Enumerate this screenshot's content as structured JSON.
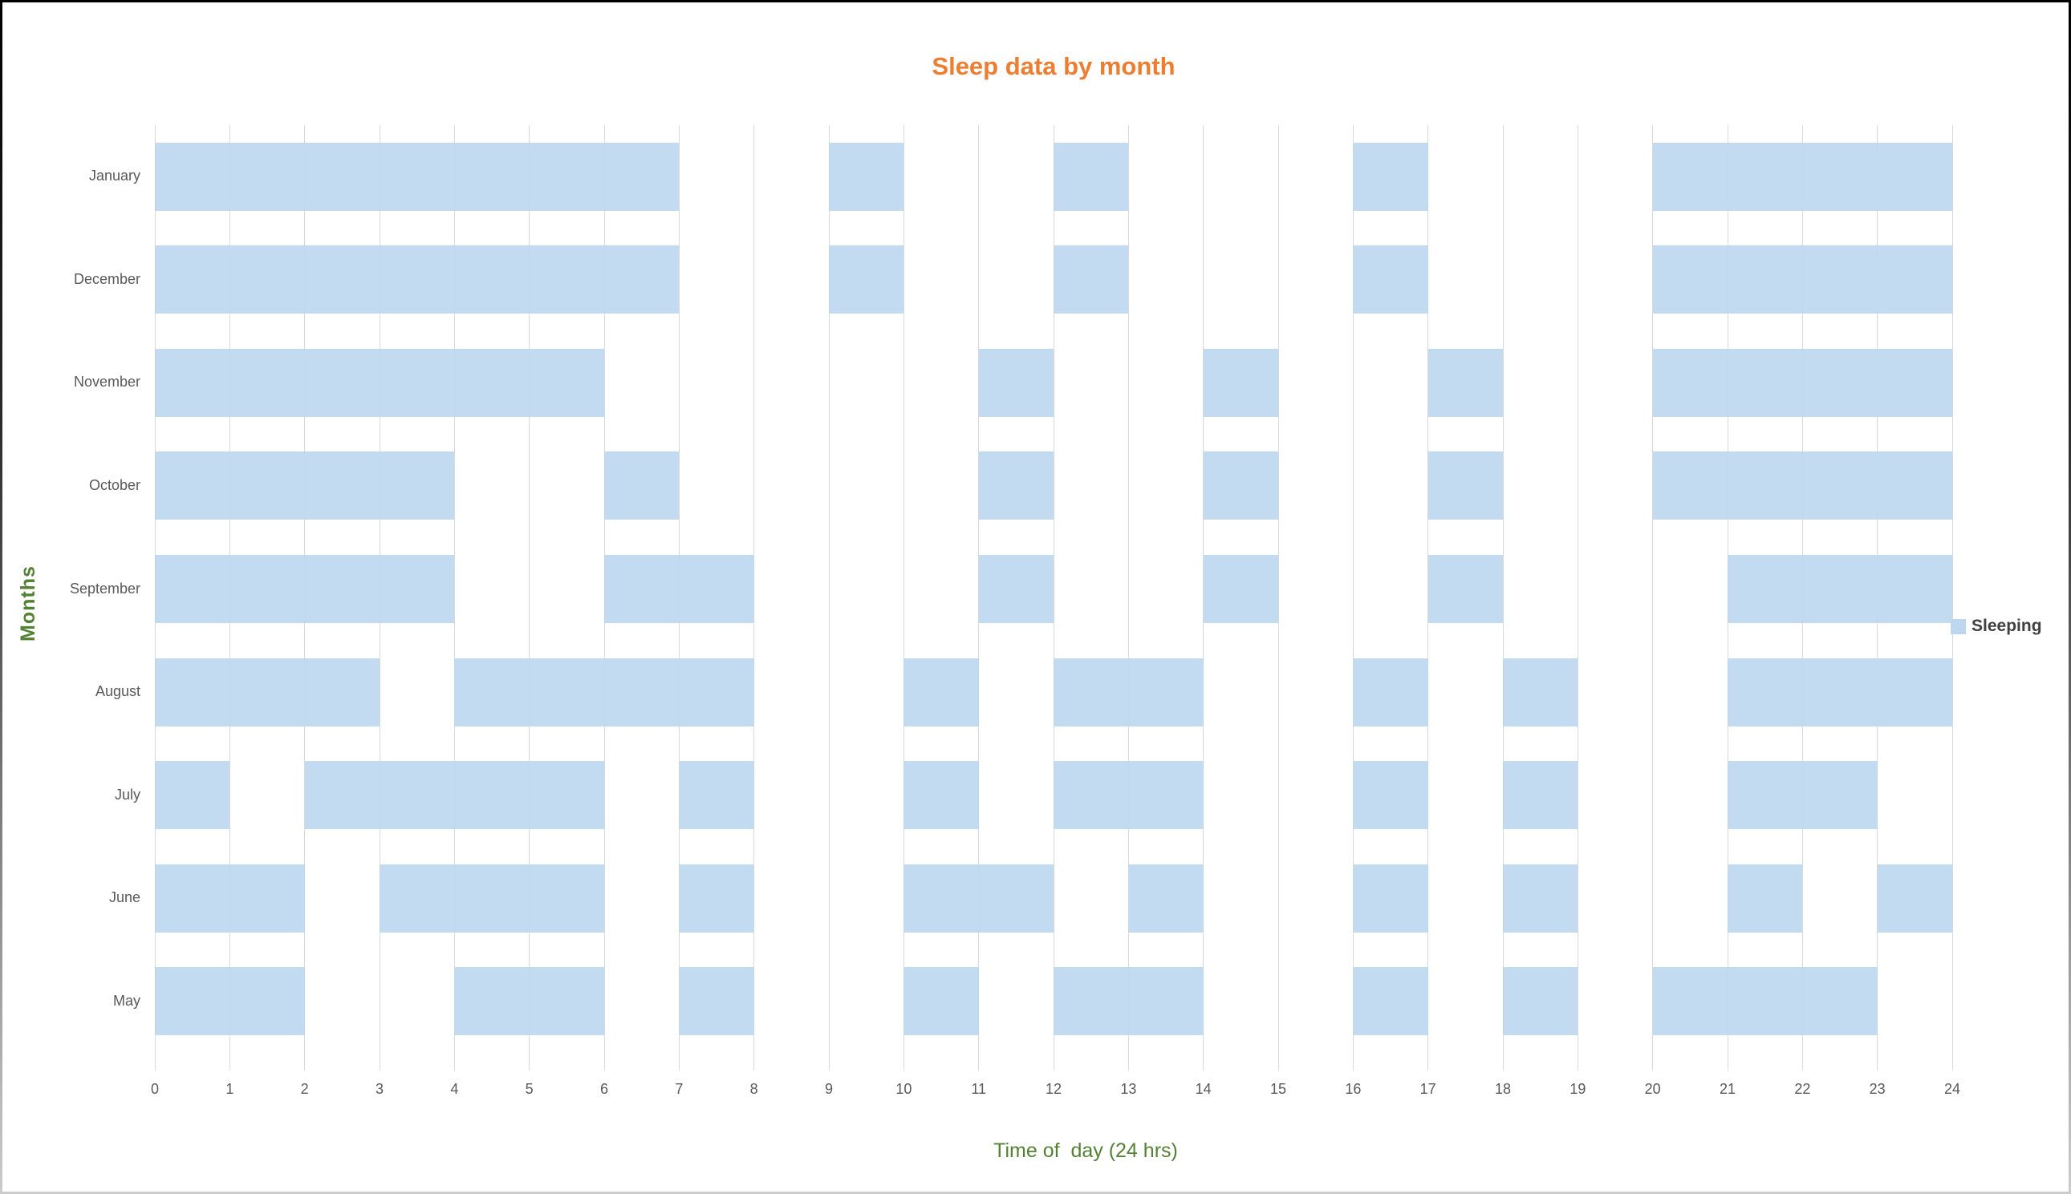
{
  "title": {
    "text": "Sleep data by month",
    "color": "#ED7D31"
  },
  "legend": {
    "label": "Sleeping",
    "swatch_color": "#BDD7EE",
    "text_color": "#404040"
  },
  "axes": {
    "x_title": "Time of  day (24 hrs)",
    "y_title": "Months",
    "axis_title_color": "#548235",
    "tick_label_color": "#595959"
  },
  "chart_data": {
    "type": "bar",
    "subtype": "gantt-intervals",
    "title": "Sleep data by month",
    "xlabel": "Time of  day (24 hrs)",
    "ylabel": "Months",
    "xlim": [
      0,
      24
    ],
    "x_ticks": [
      0,
      1,
      2,
      3,
      4,
      5,
      6,
      7,
      8,
      9,
      10,
      11,
      12,
      13,
      14,
      15,
      16,
      17,
      18,
      19,
      20,
      21,
      22,
      23,
      24
    ],
    "grid": "vertical",
    "legend_position": "right",
    "bar_color": "#BDD7EE",
    "gridline_color": "#D9D9D9",
    "categories": [
      "January",
      "December",
      "November",
      "October",
      "September",
      "August",
      "July",
      "June",
      "May"
    ],
    "series": [
      {
        "name": "Sleeping",
        "units": "hour ranges (24h)",
        "intervals_by_category": [
          [
            [
              0,
              7
            ],
            [
              9,
              10
            ],
            [
              12,
              13
            ],
            [
              16,
              17
            ],
            [
              20,
              24
            ]
          ],
          [
            [
              0,
              7
            ],
            [
              9,
              10
            ],
            [
              12,
              13
            ],
            [
              16,
              17
            ],
            [
              20,
              24
            ]
          ],
          [
            [
              0,
              6
            ],
            [
              11,
              12
            ],
            [
              14,
              15
            ],
            [
              17,
              18
            ],
            [
              20,
              24
            ]
          ],
          [
            [
              0,
              4
            ],
            [
              6,
              7
            ],
            [
              11,
              12
            ],
            [
              14,
              15
            ],
            [
              17,
              18
            ],
            [
              20,
              24
            ]
          ],
          [
            [
              0,
              4
            ],
            [
              6,
              8
            ],
            [
              11,
              12
            ],
            [
              14,
              15
            ],
            [
              17,
              18
            ],
            [
              21,
              24
            ]
          ],
          [
            [
              0,
              3
            ],
            [
              4,
              8
            ],
            [
              10,
              11
            ],
            [
              12,
              14
            ],
            [
              16,
              17
            ],
            [
              18,
              19
            ],
            [
              21,
              24
            ]
          ],
          [
            [
              0,
              1
            ],
            [
              2,
              6
            ],
            [
              7,
              8
            ],
            [
              10,
              11
            ],
            [
              12,
              14
            ],
            [
              16,
              17
            ],
            [
              18,
              19
            ],
            [
              21,
              23
            ]
          ],
          [
            [
              0,
              2
            ],
            [
              3,
              6
            ],
            [
              7,
              8
            ],
            [
              10,
              12
            ],
            [
              13,
              14
            ],
            [
              16,
              17
            ],
            [
              18,
              19
            ],
            [
              21,
              22
            ],
            [
              23,
              24
            ]
          ],
          [
            [
              0,
              2
            ],
            [
              4,
              6
            ],
            [
              7,
              8
            ],
            [
              10,
              11
            ],
            [
              12,
              14
            ],
            [
              16,
              17
            ],
            [
              18,
              19
            ],
            [
              20,
              23
            ]
          ]
        ]
      }
    ]
  }
}
